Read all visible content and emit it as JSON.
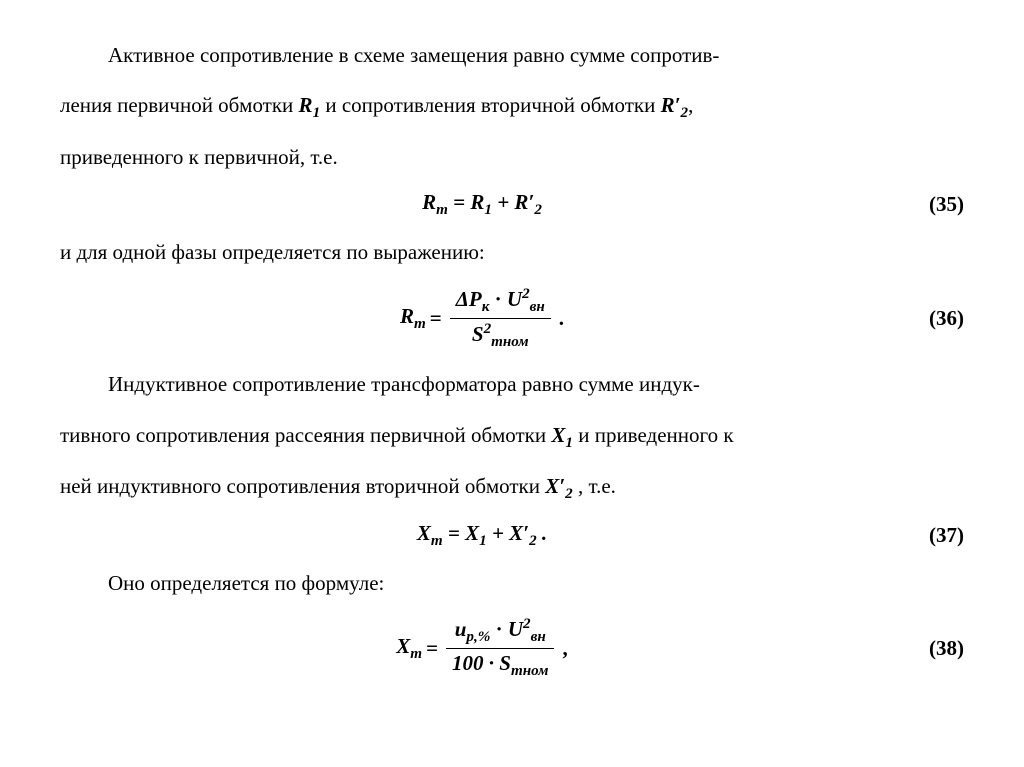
{
  "text_color": "#000000",
  "background_color": "#ffffff",
  "font_family": "Times New Roman",
  "body_fontsize": 21,
  "line_height": 2.4,
  "para1_pre": "Активное сопротивление в схеме замещения равно сумме сопротив-",
  "para1_line2a": "ления первичной обмотки ",
  "R1_sym": "R",
  "R1_sub": "1",
  "para1_line2b": " и сопротивления вторичной обмотки ",
  "R2p_sym": "R′",
  "R2p_sub": "2",
  "para1_line2c": ",",
  "para1_line3": "приведенного к первичной, т.е.",
  "eq35_lhs_sym": "R",
  "eq35_lhs_sub": "m",
  "eq35_eq": " = ",
  "eq35_r1_sym": "R",
  "eq35_r1_sub": "1",
  "eq35_plus": " + ",
  "eq35_r2_sym": "R′",
  "eq35_r2_sub": "2",
  "eq35_num": "(35)",
  "para2": "и для одной фазы определяется по выражению:",
  "eq36_lhs_sym": "R",
  "eq36_lhs_sub": "m",
  "eq36_eq": " = ",
  "eq36_num_dP": "ΔP",
  "eq36_num_dP_sub": "к",
  "eq36_num_dot": " · ",
  "eq36_num_U": "U",
  "eq36_num_U_sub": "вн",
  "eq36_num_U_sup": "2",
  "eq36_den_S": "S",
  "eq36_den_S_sub": "mном",
  "eq36_den_S_sup": "2",
  "eq36_tail": ".",
  "eq36_num": "(36)",
  "para3_line1": "Индуктивное сопротивление трансформатора равно сумме индук-",
  "para3_line2a": "тивного сопротивления рассеяния первичной обмотки ",
  "X1_sym": "X",
  "X1_sub": "1",
  "para3_line2b": " и приведенного к",
  "para3_line3a": "ней индуктивного сопротивления вторичной обмотки ",
  "X2p_sym": "X′",
  "X2p_sub": "2",
  "para3_line3b": " , т.е.",
  "eq37_lhs_sym": "X",
  "eq37_lhs_sub": "m",
  "eq37_eq": " = ",
  "eq37_x1_sym": "X",
  "eq37_x1_sub": "1",
  "eq37_plus": " + ",
  "eq37_x2_sym": "X′",
  "eq37_x2_sub": "2",
  "eq37_tail": " .",
  "eq37_num": "(37)",
  "para4": "Оно определяется по формуле:",
  "eq38_lhs_sym": "X",
  "eq38_lhs_sub": "m",
  "eq38_eq": " = ",
  "eq38_num_u": "u",
  "eq38_num_u_sub": "р,%",
  "eq38_num_dot": " · ",
  "eq38_num_U": "U",
  "eq38_num_U_sub": "вн",
  "eq38_num_U_sup": "2",
  "eq38_den_100": "100 · ",
  "eq38_den_S": "S",
  "eq38_den_S_sub": "mном",
  "eq38_tail": ",",
  "eq38_num2": "(38)"
}
